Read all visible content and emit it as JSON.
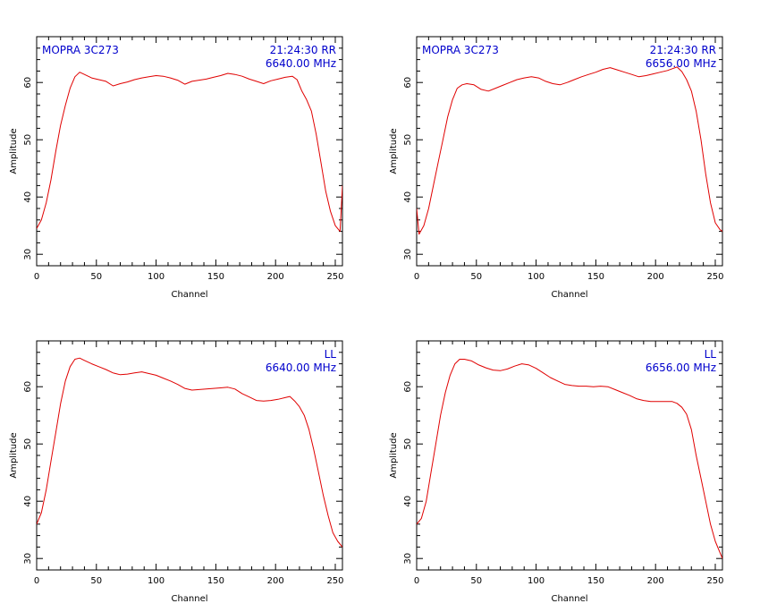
{
  "chart_data": [
    {
      "type": "line",
      "title_left": "MOPRA 3C273",
      "title_right_1": "21:24:30 RR",
      "title_right_2": "6640.00 MHz",
      "xlabel": "Channel",
      "ylabel": "Amplitude",
      "xlim": [
        0,
        256
      ],
      "ylim": [
        28,
        68
      ],
      "xticks": [
        0,
        50,
        100,
        150,
        200,
        250
      ],
      "yticks": [
        30,
        40,
        50,
        60
      ],
      "line_color": "#e00000",
      "label_color": "#0000cc",
      "series": [
        {
          "x": [
            0,
            4,
            8,
            12,
            16,
            20,
            24,
            28,
            32,
            36,
            40,
            46,
            52,
            58,
            64,
            70,
            76,
            82,
            88,
            94,
            100,
            106,
            112,
            118,
            124,
            130,
            136,
            142,
            148,
            154,
            160,
            166,
            172,
            178,
            184,
            190,
            196,
            202,
            208,
            214,
            218,
            222,
            226,
            230,
            234,
            238,
            242,
            246,
            250,
            254,
            256
          ],
          "values": [
            34.5,
            36,
            39,
            43,
            48,
            52.5,
            56,
            59,
            61,
            61.8,
            61.4,
            60.8,
            60.5,
            60.2,
            59.4,
            59.8,
            60.1,
            60.5,
            60.8,
            61,
            61.2,
            61.1,
            60.8,
            60.4,
            59.7,
            60.2,
            60.4,
            60.6,
            60.9,
            61.2,
            61.6,
            61.4,
            61.1,
            60.6,
            60.2,
            59.8,
            60.3,
            60.6,
            60.9,
            61.1,
            60.5,
            58.5,
            57,
            55,
            51,
            46,
            41,
            37.5,
            35,
            34,
            42
          ]
        }
      ]
    },
    {
      "type": "line",
      "title_left": "MOPRA 3C273",
      "title_right_1": "21:24:30 RR",
      "title_right_2": "6656.00 MHz",
      "xlabel": "Channel",
      "ylabel": "Amplitude",
      "xlim": [
        0,
        256
      ],
      "ylim": [
        28,
        68
      ],
      "xticks": [
        0,
        50,
        100,
        150,
        200,
        250
      ],
      "yticks": [
        30,
        40,
        50,
        60
      ],
      "line_color": "#e00000",
      "label_color": "#0000cc",
      "series": [
        {
          "x": [
            0,
            2,
            6,
            10,
            14,
            18,
            22,
            26,
            30,
            34,
            38,
            42,
            48,
            54,
            60,
            66,
            72,
            78,
            84,
            90,
            96,
            102,
            108,
            114,
            120,
            126,
            132,
            138,
            144,
            150,
            156,
            162,
            168,
            174,
            180,
            186,
            192,
            198,
            204,
            210,
            214,
            218,
            222,
            226,
            230,
            234,
            238,
            242,
            246,
            250,
            254,
            256
          ],
          "values": [
            38,
            33.5,
            35,
            38,
            42,
            46,
            50,
            54,
            57,
            59,
            59.6,
            59.8,
            59.6,
            58.8,
            58.5,
            59,
            59.5,
            60,
            60.5,
            60.8,
            61,
            60.8,
            60.2,
            59.8,
            59.6,
            60,
            60.5,
            61,
            61.4,
            61.8,
            62.3,
            62.6,
            62.2,
            61.8,
            61.4,
            61,
            61.2,
            61.5,
            61.8,
            62.1,
            62.4,
            62.7,
            61.9,
            60.5,
            58.5,
            55,
            50,
            44,
            39,
            35.5,
            34.3,
            34
          ]
        }
      ]
    },
    {
      "type": "line",
      "title_left": "",
      "title_right_1": "LL",
      "title_right_2": "6640.00 MHz",
      "xlabel": "Channel",
      "ylabel": "Amplitude",
      "xlim": [
        0,
        256
      ],
      "ylim": [
        28,
        68
      ],
      "xticks": [
        0,
        50,
        100,
        150,
        200,
        250
      ],
      "yticks": [
        30,
        40,
        50,
        60
      ],
      "line_color": "#e00000",
      "label_color": "#0000cc",
      "series": [
        {
          "x": [
            0,
            4,
            8,
            12,
            16,
            20,
            24,
            28,
            32,
            36,
            40,
            46,
            52,
            58,
            64,
            70,
            76,
            82,
            88,
            94,
            100,
            106,
            112,
            118,
            124,
            130,
            136,
            142,
            148,
            154,
            160,
            166,
            172,
            178,
            184,
            190,
            196,
            202,
            208,
            212,
            216,
            220,
            224,
            228,
            232,
            236,
            240,
            244,
            248,
            252,
            256
          ],
          "values": [
            36,
            38,
            42,
            47,
            52,
            57,
            61,
            63.5,
            64.8,
            65,
            64.6,
            64,
            63.5,
            63,
            62.4,
            62.1,
            62.2,
            62.4,
            62.6,
            62.3,
            62,
            61.5,
            61,
            60.4,
            59.7,
            59.4,
            59.5,
            59.6,
            59.7,
            59.8,
            59.9,
            59.6,
            58.8,
            58.2,
            57.6,
            57.5,
            57.6,
            57.8,
            58.1,
            58.3,
            57.5,
            56.5,
            55,
            52.5,
            49,
            45,
            41,
            37.5,
            34.5,
            33,
            32
          ]
        }
      ]
    },
    {
      "type": "line",
      "title_left": "",
      "title_right_1": "LL",
      "title_right_2": "6656.00 MHz",
      "xlabel": "Channel",
      "ylabel": "Amplitude",
      "xlim": [
        0,
        256
      ],
      "ylim": [
        28,
        68
      ],
      "xticks": [
        0,
        50,
        100,
        150,
        200,
        250
      ],
      "yticks": [
        30,
        40,
        50,
        60
      ],
      "line_color": "#e00000",
      "label_color": "#0000cc",
      "series": [
        {
          "x": [
            0,
            4,
            8,
            12,
            16,
            20,
            24,
            28,
            32,
            36,
            40,
            46,
            52,
            58,
            64,
            70,
            76,
            82,
            88,
            94,
            100,
            106,
            112,
            118,
            124,
            130,
            136,
            142,
            148,
            154,
            160,
            166,
            172,
            178,
            184,
            190,
            196,
            202,
            208,
            214,
            218,
            222,
            226,
            230,
            234,
            238,
            242,
            246,
            250,
            254,
            256
          ],
          "values": [
            36,
            37,
            40,
            45,
            50,
            55,
            59,
            62,
            64,
            64.8,
            64.8,
            64.5,
            63.8,
            63.3,
            62.9,
            62.8,
            63.1,
            63.6,
            64,
            63.8,
            63.2,
            62.4,
            61.6,
            61,
            60.4,
            60.2,
            60.1,
            60.1,
            60,
            60.1,
            60,
            59.5,
            59,
            58.5,
            57.9,
            57.6,
            57.4,
            57.4,
            57.4,
            57.4,
            57.1,
            56.4,
            55.2,
            52.5,
            48,
            44,
            40,
            36,
            33,
            31,
            30
          ]
        }
      ]
    }
  ]
}
